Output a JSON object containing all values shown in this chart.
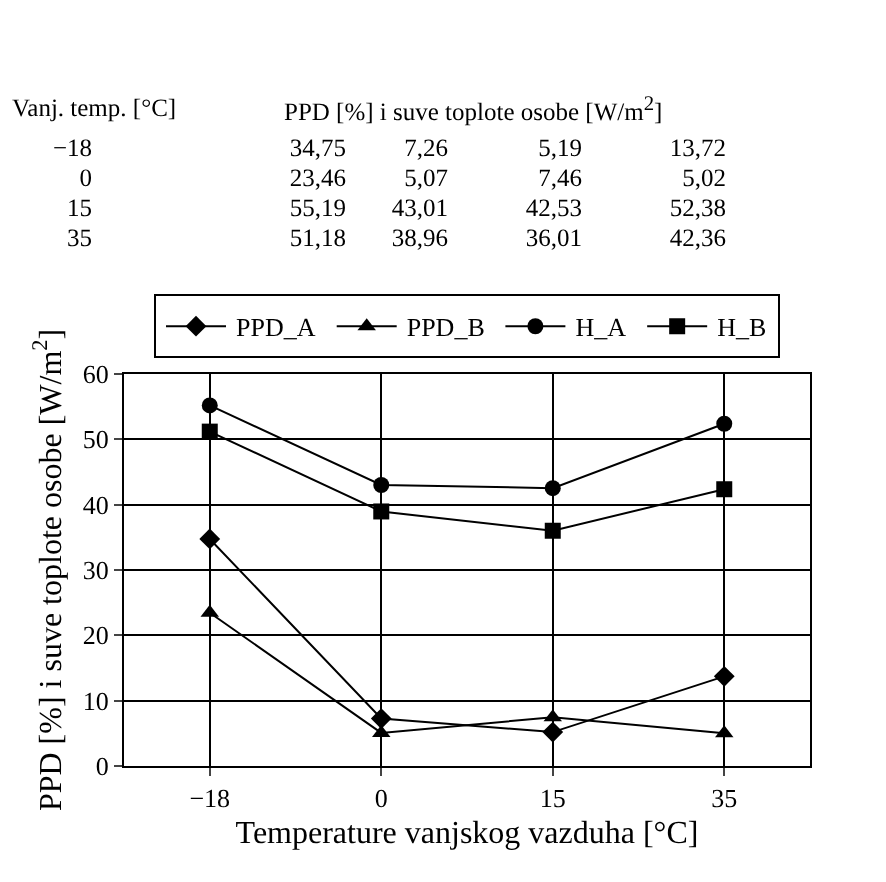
{
  "chart_data": {
    "type": "line",
    "xlabel": "Temperature vanjskog vazduha [°C]",
    "ylabel": "PPD [%] i suve toplote osobe [W/m$^{2}$]",
    "categories": [
      "−18",
      "0",
      "15",
      "35"
    ],
    "series": [
      {
        "name": "PPD_A",
        "color": "#000000",
        "marker": "diamond",
        "values": [
          34.75,
          7.26,
          5.19,
          13.72
        ]
      },
      {
        "name": "PPD_B",
        "color": "#000000",
        "marker": "triangle",
        "values": [
          23.46,
          5.07,
          7.46,
          5.02
        ]
      },
      {
        "name": "H_A",
        "color": "#000000",
        "marker": "circle",
        "values": [
          55.19,
          43.01,
          42.53,
          52.38
        ]
      },
      {
        "name": "H_B",
        "color": "#000000",
        "marker": "square",
        "values": [
          51.18,
          38.96,
          36.01,
          42.36
        ]
      }
    ],
    "annotations": [
      "Vanj. temp. [°C]",
      "PPD [%] i suve toplote osobe [W/m$^{2}$]",
      "−18",
      "34,75",
      "7,26",
      "5,19",
      "13,72",
      "0",
      "23,46",
      "5,07",
      "7,46",
      "5,02",
      "15",
      "55,19",
      "43,01",
      "42,53",
      "52,38",
      "35",
      "51,18",
      "38,96",
      "36,01",
      "42,36"
    ],
    "ylim": [
      0,
      60
    ],
    "yticks": [
      0,
      10,
      20,
      30,
      40,
      50,
      60
    ],
    "grid": true,
    "legend": "top",
    "line_style": "solid"
  }
}
